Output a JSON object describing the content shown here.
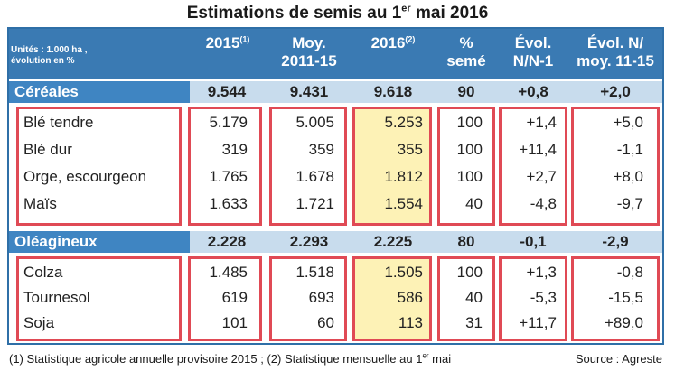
{
  "title": {
    "main": "Estimations de semis au 1",
    "sup": "er",
    "rest": " mai 2016"
  },
  "units": {
    "line1": "Unités : 1.000 ha ,",
    "line2": "évolution en %"
  },
  "columns": [
    {
      "line1": "2015",
      "sup": "(1)",
      "line2": ""
    },
    {
      "line1": "Moy.",
      "sup": "",
      "line2": "2011-15"
    },
    {
      "line1": "2016",
      "sup": "(2)",
      "line2": ""
    },
    {
      "line1": "%",
      "sup": "",
      "line2": "semé"
    },
    {
      "line1": "Évol.",
      "sup": "",
      "line2": "N/N-1"
    },
    {
      "line1": "Évol. N/",
      "sup": "",
      "line2": "moy. 11-15"
    }
  ],
  "sections": [
    {
      "name": "Céréales",
      "totals": [
        "9.544",
        "9.431",
        "9.618",
        "90",
        "+0,8",
        "+2,0"
      ],
      "rows": [
        {
          "label": "Blé tendre",
          "values": [
            "5.179",
            "5.005",
            "5.253",
            "100",
            "+1,4",
            "+5,0"
          ]
        },
        {
          "label": "Blé dur",
          "values": [
            "319",
            "359",
            "355",
            "100",
            "+11,4",
            "-1,1"
          ]
        },
        {
          "label": "Orge, escourgeon",
          "values": [
            "1.765",
            "1.678",
            "1.812",
            "100",
            "+2,7",
            "+8,0"
          ]
        },
        {
          "label": "Maïs",
          "values": [
            "1.633",
            "1.721",
            "1.554",
            "40",
            "-4,8",
            "-9,7"
          ]
        }
      ]
    },
    {
      "name": "Oléagineux",
      "totals": [
        "2.228",
        "2.293",
        "2.225",
        "80",
        "-0,1",
        "-2,9"
      ],
      "rows": [
        {
          "label": "Colza",
          "values": [
            "1.485",
            "1.518",
            "1.505",
            "100",
            "+1,3",
            "-0,8"
          ]
        },
        {
          "label": "Tournesol",
          "values": [
            "619",
            "693",
            "586",
            "40",
            "-5,3",
            "-15,5"
          ]
        },
        {
          "label": "Soja",
          "values": [
            "101",
            "60",
            "113",
            "31",
            "+11,7",
            "+89,0"
          ]
        }
      ]
    }
  ],
  "footnote": {
    "pre": "(1) Statistique agricole annuelle provisoire 2015 ; (2) Statistique mensuelle au 1",
    "sup": "er",
    "post": " mai"
  },
  "source": "Source : Agreste"
}
